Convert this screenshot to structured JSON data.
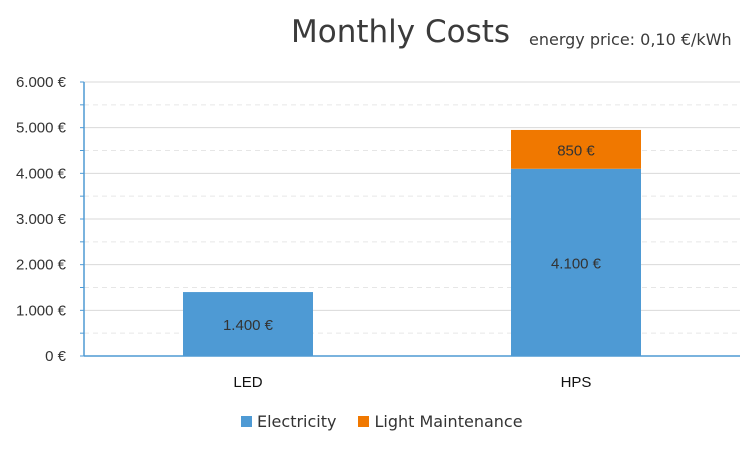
{
  "chart_data": {
    "type": "bar",
    "stacked": true,
    "title": "Monthly Costs",
    "subtitle": "energy price: 0,10 €/kWh",
    "xlabel": "",
    "ylabel": "",
    "categories": [
      "LED",
      "HPS"
    ],
    "series": [
      {
        "name": "Electricity",
        "color": "#4e9ad4",
        "values": [
          1400,
          4100
        ],
        "labels": [
          "1.400 €",
          "4.100 €"
        ]
      },
      {
        "name": "Light Maintenance",
        "color": "#f07800",
        "values": [
          0,
          850
        ],
        "labels": [
          "",
          "850 €"
        ]
      }
    ],
    "ylim": [
      0,
      6000
    ],
    "yticks": [
      0,
      1000,
      2000,
      3000,
      4000,
      5000,
      6000
    ],
    "ytick_labels": [
      "0 €",
      "1.000 €",
      "2.000 €",
      "3.000 €",
      "4.000 €",
      "5.000 €",
      "6.000 €"
    ],
    "grid": true,
    "legend": "bottom"
  }
}
